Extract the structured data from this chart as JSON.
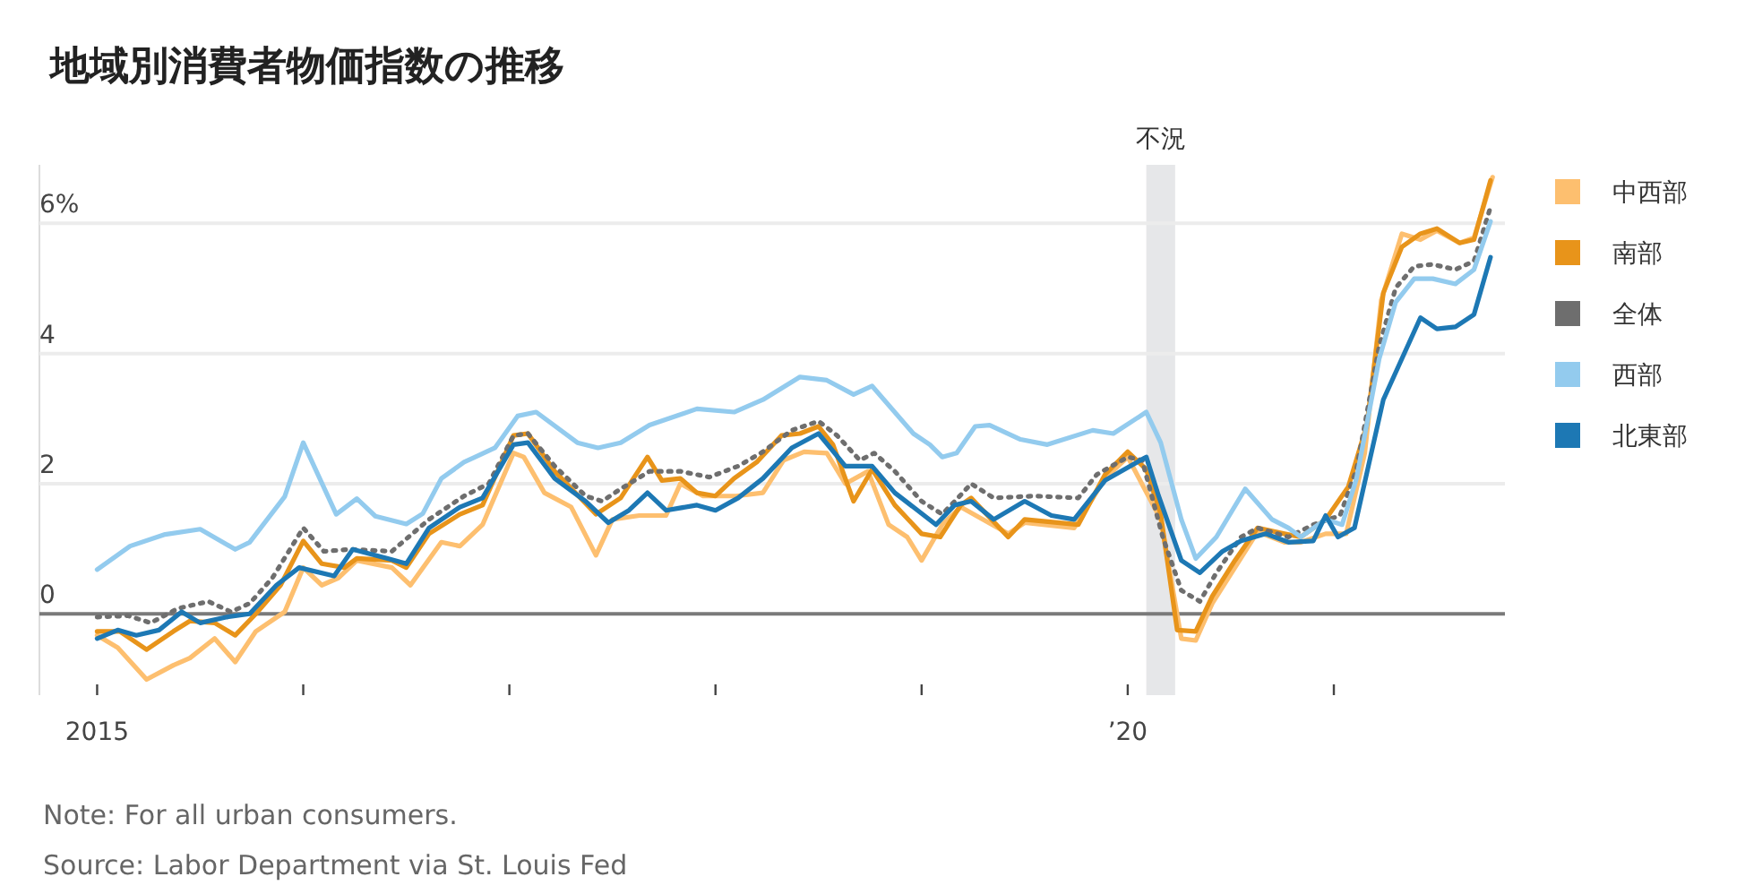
{
  "chart_data": {
    "type": "line",
    "title": "地域別消費者物価指数の推移",
    "annotations": [
      "Note: For all urban consumers.",
      "Source: Labor Department via St. Louis Fed"
    ],
    "xlim": [
      2014.72,
      2021.83
    ],
    "ylim": [
      -1.25,
      6.9
    ],
    "xticks": [
      {
        "value": 2015,
        "label": "2015"
      },
      {
        "value": 2016,
        "label": null
      },
      {
        "value": 2017,
        "label": null
      },
      {
        "value": 2018,
        "label": null
      },
      {
        "value": 2019,
        "label": null
      },
      {
        "value": 2020,
        "label": "’20"
      },
      {
        "value": 2021,
        "label": null
      }
    ],
    "yticks": [
      0,
      2,
      4,
      {
        "value": 6,
        "label": "6%"
      }
    ],
    "grid": "y",
    "legend": "right",
    "bands": [
      {
        "axis": "x",
        "from": 2020.09,
        "to": 2020.23,
        "label": "不況",
        "color": "#e6e7e9"
      }
    ],
    "series": [
      {
        "name": "中西部",
        "color": "#fdbf6f",
        "x": [
          2015,
          2015.1,
          2015.24,
          2015.37,
          2015.45,
          2015.57,
          2015.67,
          2015.77,
          2015.91,
          2016,
          2016.09,
          2016.17,
          2016.26,
          2016.43,
          2016.52,
          2016.67,
          2016.76,
          2016.87,
          2017.02,
          2017.07,
          2017.17,
          2017.3,
          2017.42,
          2017.5,
          2017.63,
          2017.76,
          2017.83,
          2017.94,
          2018.1,
          2018.23,
          2018.33,
          2018.43,
          2018.54,
          2018.63,
          2018.74,
          2018.84,
          2018.93,
          2019,
          2019.1,
          2019.19,
          2019.42,
          2019.5,
          2019.74,
          2019.89,
          2020,
          2020.16,
          2020.26,
          2020.33,
          2020.41,
          2020.52,
          2020.63,
          2020.76,
          2020.84,
          2020.96,
          2021.06,
          2021.15,
          2021.23,
          2021.33,
          2021.42,
          2021.5,
          2021.61,
          2021.68,
          2021.77
        ],
        "values": [
          -0.33,
          -0.52,
          -1.01,
          -0.79,
          -0.68,
          -0.38,
          -0.74,
          -0.27,
          0.03,
          0.71,
          0.44,
          0.55,
          0.82,
          0.71,
          0.44,
          1.1,
          1.04,
          1.37,
          2.47,
          2.41,
          1.86,
          1.64,
          0.9,
          1.45,
          1.51,
          1.51,
          2.0,
          1.81,
          1.81,
          1.86,
          2.36,
          2.49,
          2.47,
          2.0,
          2.19,
          1.37,
          1.18,
          0.82,
          1.37,
          1.64,
          1.23,
          1.4,
          1.32,
          2.08,
          2.41,
          1.45,
          -0.38,
          -0.41,
          0.16,
          0.71,
          1.26,
          1.1,
          1.1,
          1.23,
          1.23,
          2.47,
          4.82,
          5.84,
          5.75,
          5.89,
          5.7,
          5.78,
          6.71
        ]
      },
      {
        "name": "南部",
        "color": "#e8941a",
        "x": [
          2015,
          2015.11,
          2015.24,
          2015.37,
          2015.45,
          2015.57,
          2015.67,
          2015.77,
          2015.89,
          2016,
          2016.09,
          2016.2,
          2016.26,
          2016.43,
          2016.5,
          2016.61,
          2016.76,
          2016.87,
          2017.02,
          2017.09,
          2017.22,
          2017.42,
          2017.54,
          2017.67,
          2017.74,
          2017.83,
          2017.91,
          2018,
          2018.09,
          2018.2,
          2018.32,
          2018.41,
          2018.5,
          2018.57,
          2018.67,
          2018.76,
          2018.87,
          2019,
          2019.09,
          2019.19,
          2019.24,
          2019.42,
          2019.5,
          2019.76,
          2019.89,
          2020,
          2020.09,
          2020.16,
          2020.24,
          2020.33,
          2020.41,
          2020.52,
          2020.63,
          2020.76,
          2020.84,
          2020.96,
          2021.07,
          2021.16,
          2021.24,
          2021.33,
          2021.42,
          2021.5,
          2021.61,
          2021.68,
          2021.76
        ],
        "values": [
          -0.27,
          -0.27,
          -0.55,
          -0.27,
          -0.11,
          -0.14,
          -0.33,
          0,
          0.44,
          1.12,
          0.77,
          0.71,
          0.85,
          0.82,
          0.71,
          1.23,
          1.53,
          1.67,
          2.74,
          2.77,
          2.19,
          1.53,
          1.78,
          2.41,
          2.05,
          2.08,
          1.86,
          1.81,
          2.08,
          2.33,
          2.74,
          2.77,
          2.88,
          2.6,
          1.73,
          2.22,
          1.67,
          1.23,
          1.18,
          1.67,
          1.78,
          1.18,
          1.45,
          1.37,
          2.14,
          2.49,
          2.22,
          1.53,
          -0.25,
          -0.27,
          0.27,
          0.82,
          1.32,
          1.23,
          1.18,
          1.45,
          1.95,
          2.9,
          4.93,
          5.64,
          5.84,
          5.92,
          5.7,
          5.75,
          6.66
        ]
      },
      {
        "name": "全体",
        "color": "#6e6e6e",
        "line_style": "dotted",
        "x": [
          2015,
          2015.15,
          2015.26,
          2015.39,
          2015.54,
          2015.65,
          2015.74,
          2015.85,
          2016,
          2016.1,
          2016.23,
          2016.43,
          2016.61,
          2016.78,
          2016.9,
          2017.02,
          2017.09,
          2017.22,
          2017.37,
          2017.45,
          2017.54,
          2017.68,
          2017.83,
          2017.97,
          2018.11,
          2018.23,
          2018.37,
          2018.5,
          2018.59,
          2018.7,
          2018.77,
          2018.87,
          2019,
          2019.1,
          2019.2,
          2019.24,
          2019.35,
          2019.55,
          2019.76,
          2019.85,
          2020,
          2020.07,
          2020.17,
          2020.26,
          2020.35,
          2020.43,
          2020.55,
          2020.63,
          2020.78,
          2020.9,
          2021.03,
          2021.11,
          2021.22,
          2021.3,
          2021.39,
          2021.48,
          2021.59,
          2021.68,
          2021.76
        ],
        "values": [
          -0.05,
          -0.03,
          -0.14,
          0.08,
          0.19,
          0.03,
          0.16,
          0.55,
          1.32,
          0.96,
          0.99,
          0.96,
          1.45,
          1.81,
          2.0,
          2.74,
          2.77,
          2.27,
          1.81,
          1.73,
          1.92,
          2.19,
          2.19,
          2.1,
          2.27,
          2.49,
          2.82,
          2.96,
          2.74,
          2.36,
          2.47,
          2.19,
          1.73,
          1.53,
          1.86,
          2.0,
          1.78,
          1.81,
          1.78,
          2.14,
          2.41,
          2.36,
          1.18,
          0.36,
          0.19,
          0.63,
          1.18,
          1.32,
          1.18,
          1.37,
          1.51,
          2.22,
          4.11,
          5.01,
          5.34,
          5.37,
          5.29,
          5.42,
          6.25
        ]
      },
      {
        "name": "西部",
        "color": "#93cbee",
        "x": [
          2015,
          2015.16,
          2015.33,
          2015.5,
          2015.67,
          2015.74,
          2015.91,
          2016,
          2016.16,
          2016.26,
          2016.35,
          2016.5,
          2016.58,
          2016.67,
          2016.78,
          2016.93,
          2017.04,
          2017.13,
          2017.33,
          2017.43,
          2017.54,
          2017.68,
          2017.91,
          2018.09,
          2018.23,
          2018.41,
          2018.54,
          2018.67,
          2018.76,
          2018.96,
          2019.04,
          2019.1,
          2019.17,
          2019.26,
          2019.33,
          2019.48,
          2019.61,
          2019.83,
          2019.93,
          2020.09,
          2020.16,
          2020.26,
          2020.33,
          2020.43,
          2020.57,
          2020.7,
          2020.78,
          2020.84,
          2020.96,
          2021.04,
          2021.11,
          2021.22,
          2021.3,
          2021.39,
          2021.48,
          2021.59,
          2021.68,
          2021.76
        ],
        "values": [
          0.68,
          1.04,
          1.22,
          1.3,
          0.99,
          1.1,
          1.8,
          2.63,
          1.53,
          1.77,
          1.5,
          1.38,
          1.54,
          2.08,
          2.33,
          2.55,
          3.04,
          3.1,
          2.63,
          2.55,
          2.63,
          2.9,
          3.15,
          3.1,
          3.29,
          3.64,
          3.59,
          3.37,
          3.5,
          2.77,
          2.6,
          2.41,
          2.47,
          2.88,
          2.9,
          2.68,
          2.6,
          2.82,
          2.77,
          3.1,
          2.63,
          1.45,
          0.85,
          1.18,
          1.92,
          1.45,
          1.32,
          1.18,
          1.45,
          1.37,
          2.08,
          3.92,
          4.79,
          5.15,
          5.15,
          5.07,
          5.29,
          6.03
        ]
      },
      {
        "name": "北東部",
        "color": "#1d78b4",
        "x": [
          2015,
          2015.1,
          2015.19,
          2015.3,
          2015.41,
          2015.5,
          2015.63,
          2015.74,
          2015.87,
          2015.98,
          2016.15,
          2016.24,
          2016.41,
          2016.5,
          2016.61,
          2016.76,
          2016.87,
          2017.02,
          2017.09,
          2017.22,
          2017.37,
          2017.48,
          2017.58,
          2017.67,
          2017.76,
          2017.91,
          2018,
          2018.11,
          2018.23,
          2018.37,
          2018.5,
          2018.63,
          2018.76,
          2018.87,
          2019.07,
          2019.16,
          2019.24,
          2019.35,
          2019.5,
          2019.63,
          2019.74,
          2019.89,
          2020.09,
          2020.15,
          2020.26,
          2020.35,
          2020.46,
          2020.55,
          2020.67,
          2020.78,
          2020.9,
          2020.96,
          2021.02,
          2021.1,
          2021.24,
          2021.42,
          2021.5,
          2021.59,
          2021.68,
          2021.76
        ],
        "values": [
          -0.38,
          -0.25,
          -0.33,
          -0.25,
          0.03,
          -0.14,
          -0.05,
          0,
          0.44,
          0.71,
          0.58,
          0.99,
          0.85,
          0.77,
          1.32,
          1.64,
          1.78,
          2.6,
          2.63,
          2.08,
          1.73,
          1.4,
          1.59,
          1.86,
          1.59,
          1.67,
          1.59,
          1.78,
          2.08,
          2.55,
          2.77,
          2.27,
          2.27,
          1.86,
          1.37,
          1.67,
          1.73,
          1.45,
          1.73,
          1.51,
          1.45,
          2.05,
          2.41,
          1.81,
          0.82,
          0.63,
          0.96,
          1.12,
          1.23,
          1.1,
          1.12,
          1.51,
          1.18,
          1.32,
          3.29,
          4.55,
          4.38,
          4.41,
          4.6,
          5.48
        ]
      }
    ]
  }
}
